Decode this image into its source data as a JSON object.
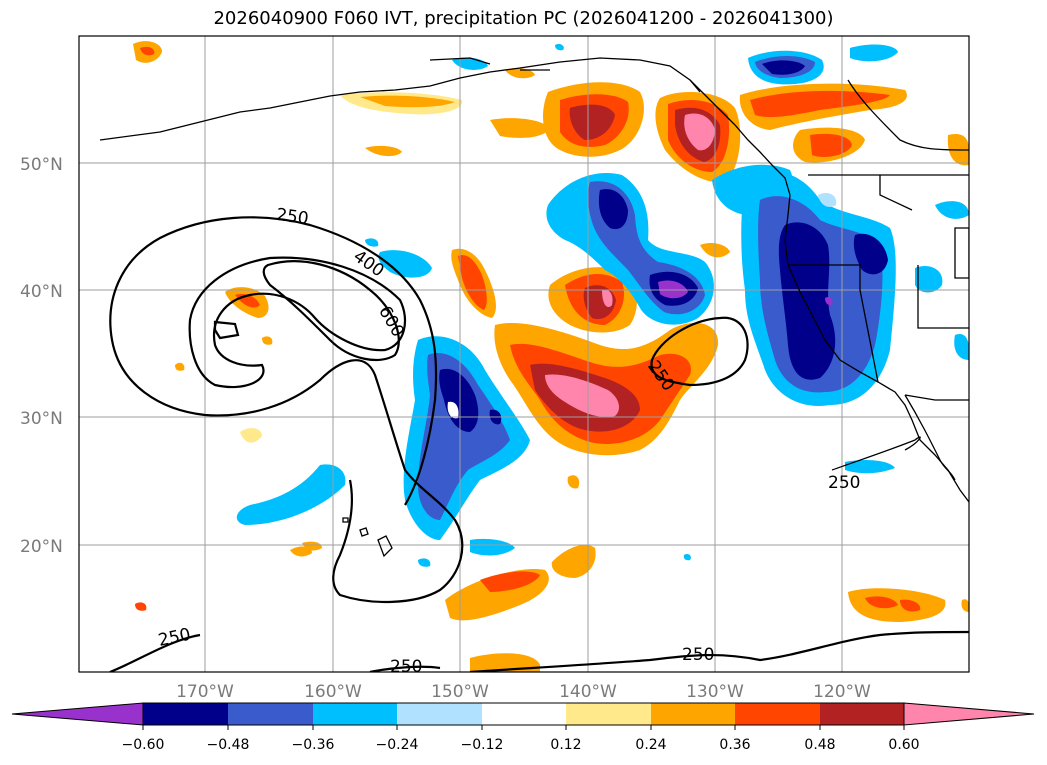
{
  "title": "2026040900 F060 IVT, precipitation PC (2026041200 - 2026041300)",
  "map": {
    "lat_labels": [
      "50°N",
      "40°N",
      "30°N",
      "20°N"
    ],
    "lon_labels": [
      "170°W",
      "160°W",
      "150°W",
      "140°W",
      "130°W",
      "120°W"
    ],
    "ivt_contour_labels": [
      "250",
      "400",
      "600",
      "250",
      "250",
      "250",
      "250"
    ]
  },
  "colorbar": {
    "tick_labels": [
      "−0.60",
      "−0.48",
      "−0.36",
      "−0.24",
      "−0.12",
      "0.12",
      "0.24",
      "0.36",
      "0.48",
      "0.60"
    ],
    "colors": [
      "#9932cc",
      "#00008b",
      "#3a5bcc",
      "#00bfff",
      "#b0e2ff",
      "#ffffff",
      "#ffe98a",
      "#ffa500",
      "#ff4500",
      "#b22222",
      "#ff85ad"
    ]
  },
  "palette": {
    "neg_strong": "#00008b",
    "neg_mid": "#3a5bcc",
    "neg_light": "#00bfff",
    "neg_pale": "#b0e2ff",
    "pos_pale": "#ffe98a",
    "pos_light": "#ffa500",
    "pos_mid": "#ff4500",
    "pos_strong": "#b22222",
    "pos_max": "#ff85ad",
    "purple": "#9932cc"
  }
}
